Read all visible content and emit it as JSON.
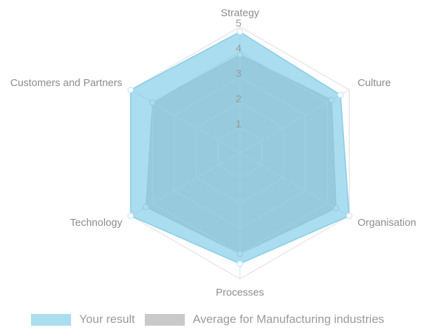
{
  "chart_data": {
    "type": "radar",
    "title": "",
    "categories": [
      "Strategy",
      "Culture",
      "Organisation",
      "Processes",
      "Technology",
      "Customers and Partners"
    ],
    "series": [
      {
        "name": "Your result",
        "values": [
          4.8,
          4.6,
          5.0,
          4.4,
          5.0,
          5.0
        ],
        "color": "#7DCBE7",
        "fill": "rgba(125,203,231,0.65)",
        "stroke": "#85CCE8",
        "marker_stroke": "#BDE2F2"
      },
      {
        "name": "Average for Manufacturing industries",
        "values": [
          3.9,
          4.2,
          4.4,
          4.0,
          4.3,
          4.0
        ],
        "color": "#C9C9C9",
        "fill": "#C9C9C9",
        "stroke": "#B3B3B3",
        "marker_stroke": "#BFBFBF"
      }
    ],
    "scale": {
      "min": 0,
      "max": 5,
      "ticks": [
        1,
        2,
        3,
        4,
        5
      ]
    },
    "grid": true,
    "legend_position": "bottom"
  },
  "colors": {
    "background": "#FFFFFF",
    "grid": "#DDDDDD",
    "tick_label": "#9A9A9A",
    "axis_label": "#8C8C8C",
    "legend_text": "#9A9A9A"
  }
}
